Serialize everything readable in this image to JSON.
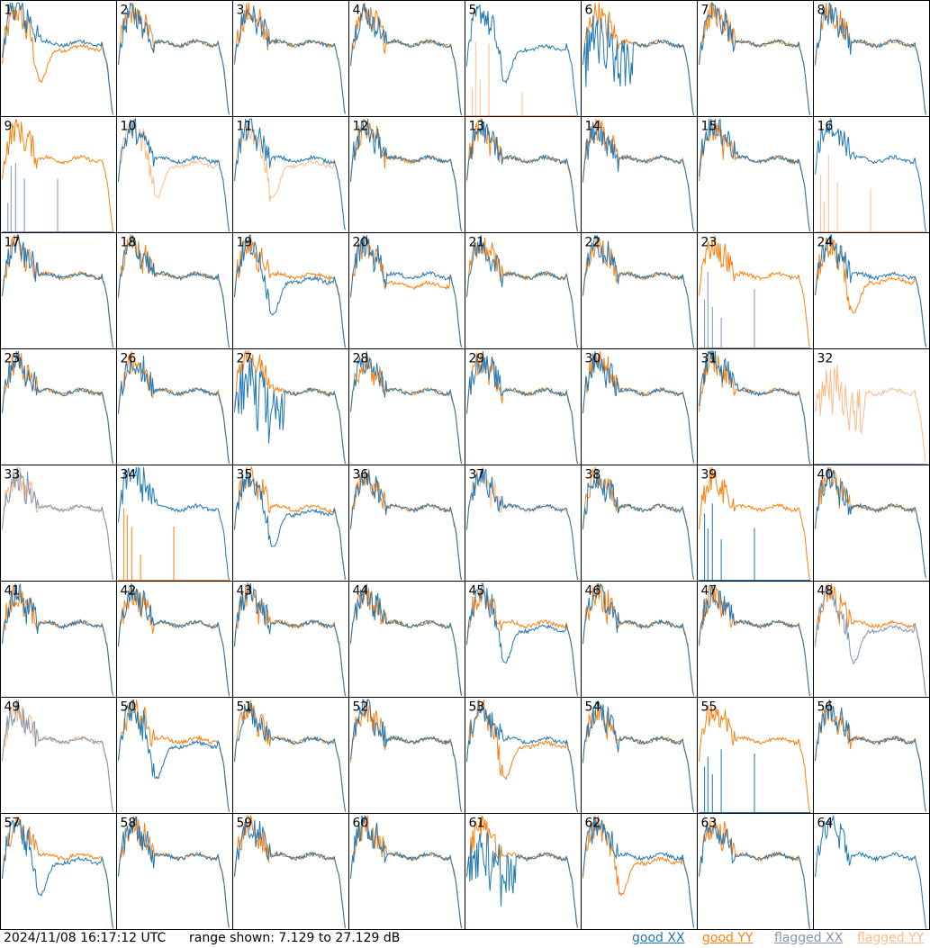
{
  "chart_data": {
    "type": "line",
    "grid": {
      "rows": 8,
      "cols": 8
    },
    "panels": [
      {
        "label": "1",
        "xx": "good",
        "yy": "good",
        "xx_shape": "hump",
        "yy_shape": "dip"
      },
      {
        "label": "2",
        "xx": "good",
        "yy": "good",
        "xx_shape": "normal",
        "yy_shape": "normal"
      },
      {
        "label": "3",
        "xx": "good",
        "yy": "good",
        "xx_shape": "normal",
        "yy_shape": "normal"
      },
      {
        "label": "4",
        "xx": "good",
        "yy": "good",
        "xx_shape": "normal",
        "yy_shape": "normal"
      },
      {
        "label": "5",
        "xx": "good",
        "yy": "flagged",
        "xx_shape": "dip",
        "yy_shape": "spike"
      },
      {
        "label": "6",
        "xx": "good",
        "yy": "good",
        "xx_shape": "noisy",
        "yy_shape": "normal"
      },
      {
        "label": "7",
        "xx": "good",
        "yy": "good",
        "xx_shape": "normal",
        "yy_shape": "normal"
      },
      {
        "label": "8",
        "xx": "good",
        "yy": "good",
        "xx_shape": "normal",
        "yy_shape": "normal"
      },
      {
        "label": "9",
        "xx": "flagged",
        "yy": "good",
        "xx_shape": "spike",
        "yy_shape": "normal"
      },
      {
        "label": "10",
        "xx": "good",
        "yy": "flagged",
        "xx_shape": "normal",
        "yy_shape": "dip"
      },
      {
        "label": "11",
        "xx": "good",
        "yy": "flagged",
        "xx_shape": "normal",
        "yy_shape": "dip"
      },
      {
        "label": "12",
        "xx": "good",
        "yy": "good",
        "xx_shape": "normal",
        "yy_shape": "normal"
      },
      {
        "label": "13",
        "xx": "good",
        "yy": "good",
        "xx_shape": "normal",
        "yy_shape": "normal"
      },
      {
        "label": "14",
        "xx": "good",
        "yy": "good",
        "xx_shape": "normal",
        "yy_shape": "normal"
      },
      {
        "label": "15",
        "xx": "good",
        "yy": "good",
        "xx_shape": "hump",
        "yy_shape": "normal"
      },
      {
        "label": "16",
        "xx": "good",
        "yy": "flagged",
        "xx_shape": "hump",
        "yy_shape": "spike"
      },
      {
        "label": "17",
        "xx": "good",
        "yy": "good",
        "xx_shape": "normal",
        "yy_shape": "normal"
      },
      {
        "label": "18",
        "xx": "good",
        "yy": "good",
        "xx_shape": "normal",
        "yy_shape": "normal"
      },
      {
        "label": "19",
        "xx": "good",
        "yy": "good",
        "xx_shape": "dip",
        "yy_shape": "normal"
      },
      {
        "label": "20",
        "xx": "good",
        "yy": "good",
        "xx_shape": "normal",
        "yy_shape": "low"
      },
      {
        "label": "21",
        "xx": "good",
        "yy": "good",
        "xx_shape": "normal",
        "yy_shape": "normal"
      },
      {
        "label": "22",
        "xx": "good",
        "yy": "good",
        "xx_shape": "normal",
        "yy_shape": "normal"
      },
      {
        "label": "23",
        "xx": "flagged",
        "yy": "good",
        "xx_shape": "spike",
        "yy_shape": "normal"
      },
      {
        "label": "24",
        "xx": "good",
        "yy": "good",
        "xx_shape": "normal",
        "yy_shape": "dip"
      },
      {
        "label": "25",
        "xx": "good",
        "yy": "good",
        "xx_shape": "normal",
        "yy_shape": "normal"
      },
      {
        "label": "26",
        "xx": "good",
        "yy": "good",
        "xx_shape": "normal",
        "yy_shape": "normal"
      },
      {
        "label": "27",
        "xx": "good",
        "yy": "good",
        "xx_shape": "noisy",
        "yy_shape": "hump"
      },
      {
        "label": "28",
        "xx": "good",
        "yy": "good",
        "xx_shape": "normal",
        "yy_shape": "normal"
      },
      {
        "label": "29",
        "xx": "good",
        "yy": "good",
        "xx_shape": "normal",
        "yy_shape": "normal"
      },
      {
        "label": "30",
        "xx": "good",
        "yy": "good",
        "xx_shape": "normal",
        "yy_shape": "normal"
      },
      {
        "label": "31",
        "xx": "good",
        "yy": "good",
        "xx_shape": "hump",
        "yy_shape": "normal"
      },
      {
        "label": "32",
        "xx": "flagged",
        "yy": "flagged",
        "xx_shape": "flat",
        "yy_shape": "noisy"
      },
      {
        "label": "33",
        "xx": "flagged",
        "yy": "flagged",
        "xx_shape": "normal",
        "yy_shape": "normal"
      },
      {
        "label": "34",
        "xx": "good",
        "yy": "good",
        "xx_shape": "hump",
        "yy_shape": "spike"
      },
      {
        "label": "35",
        "xx": "good",
        "yy": "good",
        "xx_shape": "dip",
        "yy_shape": "normal"
      },
      {
        "label": "36",
        "xx": "good",
        "yy": "good",
        "xx_shape": "normal",
        "yy_shape": "normal"
      },
      {
        "label": "37",
        "xx": "good",
        "yy": "flagged",
        "xx_shape": "normal",
        "yy_shape": "normal"
      },
      {
        "label": "38",
        "xx": "good",
        "yy": "good",
        "xx_shape": "normal",
        "yy_shape": "normal"
      },
      {
        "label": "39",
        "xx": "good",
        "yy": "good",
        "xx_shape": "spike",
        "yy_shape": "normal"
      },
      {
        "label": "40",
        "xx": "good",
        "yy": "good",
        "xx_shape": "normal",
        "yy_shape": "normal"
      },
      {
        "label": "41",
        "xx": "good",
        "yy": "good",
        "xx_shape": "normal",
        "yy_shape": "normal"
      },
      {
        "label": "42",
        "xx": "good",
        "yy": "good",
        "xx_shape": "normal",
        "yy_shape": "normal"
      },
      {
        "label": "43",
        "xx": "good",
        "yy": "good",
        "xx_shape": "normal",
        "yy_shape": "normal"
      },
      {
        "label": "44",
        "xx": "good",
        "yy": "good",
        "xx_shape": "normal",
        "yy_shape": "normal"
      },
      {
        "label": "45",
        "xx": "good",
        "yy": "good",
        "xx_shape": "dip",
        "yy_shape": "normal"
      },
      {
        "label": "46",
        "xx": "good",
        "yy": "good",
        "xx_shape": "normal",
        "yy_shape": "normal"
      },
      {
        "label": "47",
        "xx": "good",
        "yy": "good",
        "xx_shape": "normal",
        "yy_shape": "normal"
      },
      {
        "label": "48",
        "xx": "flagged",
        "yy": "good",
        "xx_shape": "dip",
        "yy_shape": "normal"
      },
      {
        "label": "49",
        "xx": "flagged",
        "yy": "flagged",
        "xx_shape": "normal",
        "yy_shape": "normal"
      },
      {
        "label": "50",
        "xx": "good",
        "yy": "good",
        "xx_shape": "dip",
        "yy_shape": "normal"
      },
      {
        "label": "51",
        "xx": "good",
        "yy": "good",
        "xx_shape": "normal",
        "yy_shape": "normal"
      },
      {
        "label": "52",
        "xx": "good",
        "yy": "good",
        "xx_shape": "normal",
        "yy_shape": "normal"
      },
      {
        "label": "53",
        "xx": "good",
        "yy": "good",
        "xx_shape": "normal",
        "yy_shape": "dip"
      },
      {
        "label": "54",
        "xx": "good",
        "yy": "good",
        "xx_shape": "normal",
        "yy_shape": "normal"
      },
      {
        "label": "55",
        "xx": "good",
        "yy": "good",
        "xx_shape": "spike",
        "yy_shape": "normal"
      },
      {
        "label": "56",
        "xx": "good",
        "yy": "good",
        "xx_shape": "normal",
        "yy_shape": "normal"
      },
      {
        "label": "57",
        "xx": "good",
        "yy": "good",
        "xx_shape": "dip",
        "yy_shape": "normal"
      },
      {
        "label": "58",
        "xx": "good",
        "yy": "good",
        "xx_shape": "normal",
        "yy_shape": "normal"
      },
      {
        "label": "59",
        "xx": "good",
        "yy": "good",
        "xx_shape": "normal",
        "yy_shape": "normal"
      },
      {
        "label": "60",
        "xx": "good",
        "yy": "good",
        "xx_shape": "normal",
        "yy_shape": "normal"
      },
      {
        "label": "61",
        "xx": "good",
        "yy": "good",
        "xx_shape": "noisy",
        "yy_shape": "normal"
      },
      {
        "label": "62",
        "xx": "good",
        "yy": "good",
        "xx_shape": "normal",
        "yy_shape": "dip"
      },
      {
        "label": "63",
        "xx": "good",
        "yy": "good",
        "xx_shape": "normal",
        "yy_shape": "normal"
      },
      {
        "label": "64",
        "xx": "good",
        "yy": "none",
        "xx_shape": "normal",
        "yy_shape": "none"
      }
    ],
    "legend": [
      {
        "label": "good XX",
        "color": "#1f77b4"
      },
      {
        "label": "good YY",
        "color": "#ff7f0e"
      },
      {
        "label": "flagged XX",
        "color": "#7f97b2"
      },
      {
        "label": "flagged YY",
        "color": "#ffbb88"
      }
    ]
  },
  "footer": {
    "timestamp": "2024/11/08 16:17:12 UTC",
    "range_text": "range shown: 7.129 to 27.129 dB",
    "legend_good_xx": "good XX",
    "legend_good_yy": "good YY",
    "legend_flagged_xx": "flagged XX",
    "legend_flagged_yy": "flagged YY"
  }
}
